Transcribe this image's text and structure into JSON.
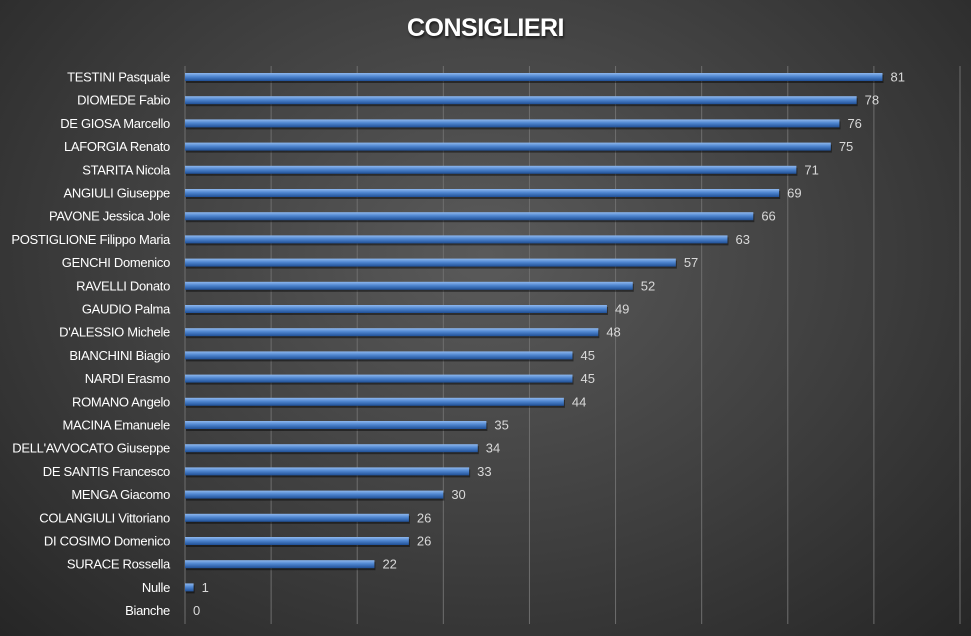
{
  "chart_data": {
    "type": "bar",
    "orientation": "horizontal",
    "title": "CONSIGLIERI",
    "xlabel": "",
    "ylabel": "",
    "xlim": [
      0,
      90
    ],
    "grid": true,
    "legend": "none",
    "categories": [
      "TESTINI Pasquale",
      "DIOMEDE Fabio",
      "DE GIOSA Marcello",
      "LAFORGIA Renato",
      "STARITA Nicola",
      "ANGIULI Giuseppe",
      "PAVONE Jessica Jole",
      "POSTIGLIONE Filippo Maria",
      "GENCHI Domenico",
      "RAVELLI Donato",
      "GAUDIO Palma",
      "D'ALESSIO Michele",
      "BIANCHINI Biagio",
      "NARDI Erasmo",
      "ROMANO Angelo",
      "MACINA Emanuele",
      "DELL'AVVOCATO Giuseppe",
      "DE SANTIS Francesco",
      "MENGA Giacomo",
      "COLANGIULI Vittoriano",
      "DI COSIMO Domenico",
      "SURACE Rossella",
      "Nulle",
      "Bianche"
    ],
    "values": [
      81,
      78,
      76,
      75,
      71,
      69,
      66,
      63,
      57,
      52,
      49,
      48,
      45,
      45,
      44,
      35,
      34,
      33,
      30,
      26,
      26,
      22,
      1,
      0
    ],
    "colors": {
      "bar_light": "#8fb8ee",
      "bar_mid": "#4f86d0",
      "bar_dark": "#1f4f95",
      "gridline": "#6e6e6e",
      "category_text": "#ffffff",
      "value_text": "#d9d9d9"
    }
  }
}
